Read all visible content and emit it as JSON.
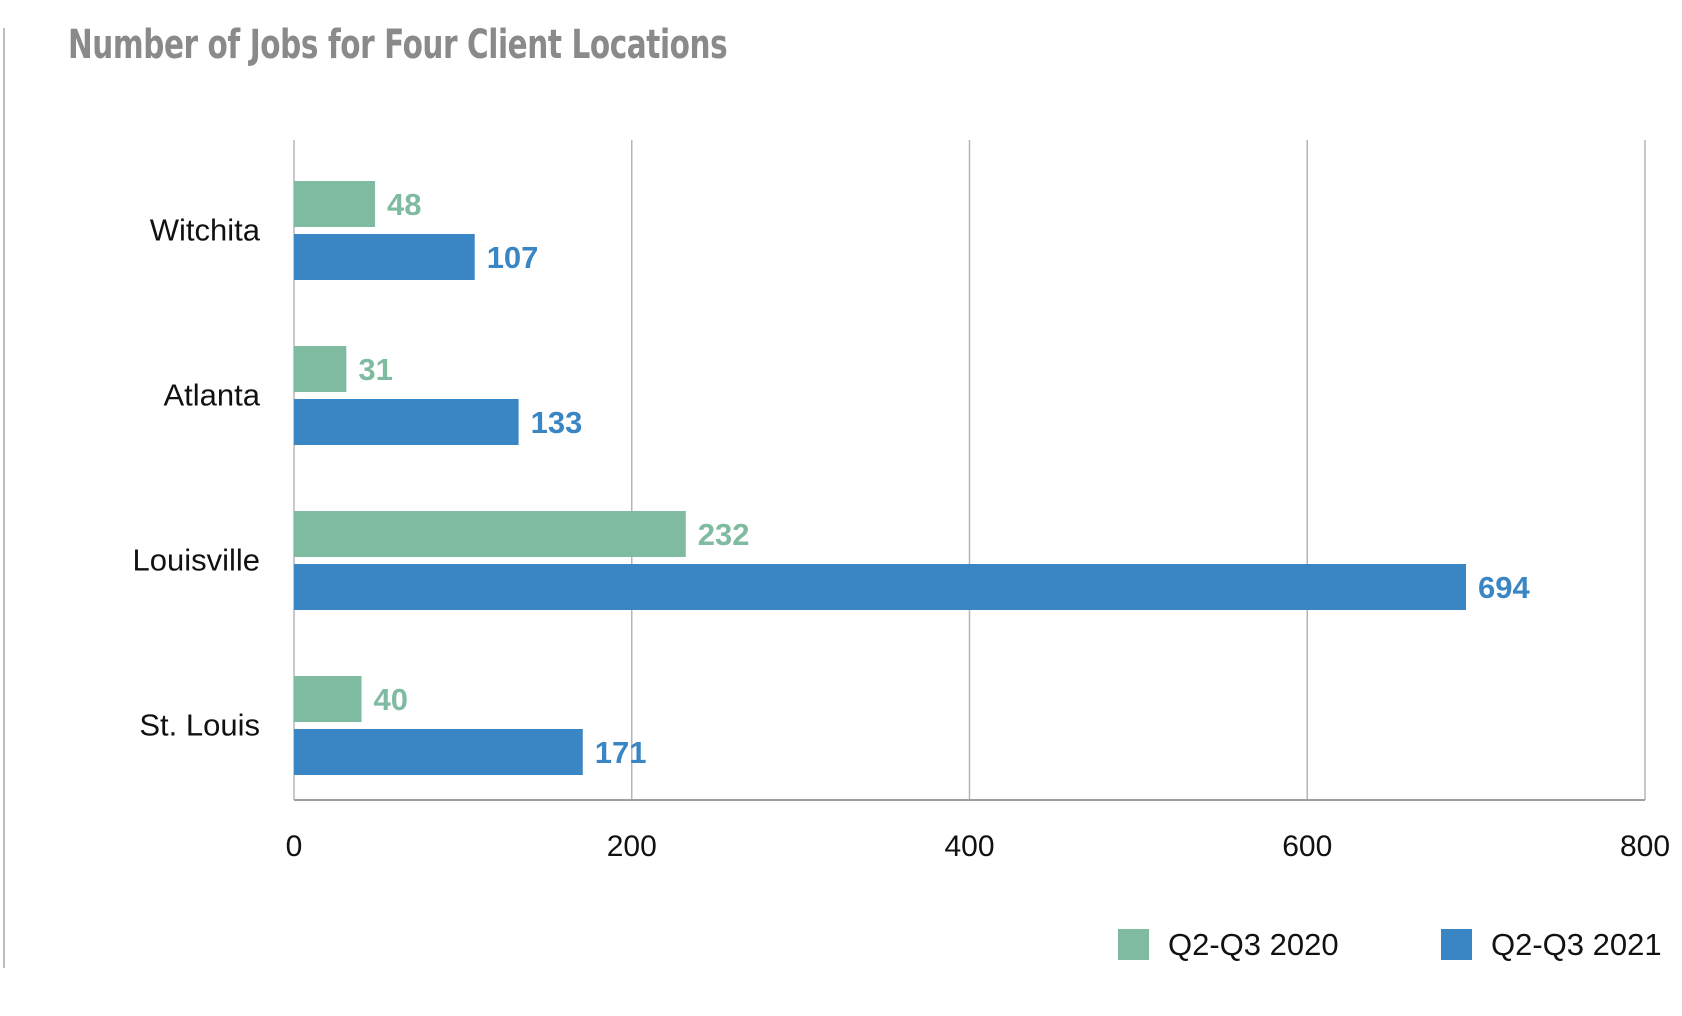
{
  "chart_data": {
    "type": "bar",
    "orientation": "horizontal",
    "title": "Number of Jobs for Four Client Locations",
    "categories": [
      "Witchita",
      "Atlanta",
      "Louisville",
      "St. Louis"
    ],
    "series": [
      {
        "name": "Q2-Q3 2020",
        "color": "#7fbba0",
        "values": [
          48,
          31,
          232,
          40
        ]
      },
      {
        "name": "Q2-Q3 2021",
        "color": "#3a86c4",
        "values": [
          107,
          133,
          694,
          171
        ]
      }
    ],
    "xlim": [
      0,
      800
    ],
    "xticks": [
      0,
      200,
      400,
      600,
      800
    ],
    "grid": true,
    "legend_position": "bottom-right"
  }
}
